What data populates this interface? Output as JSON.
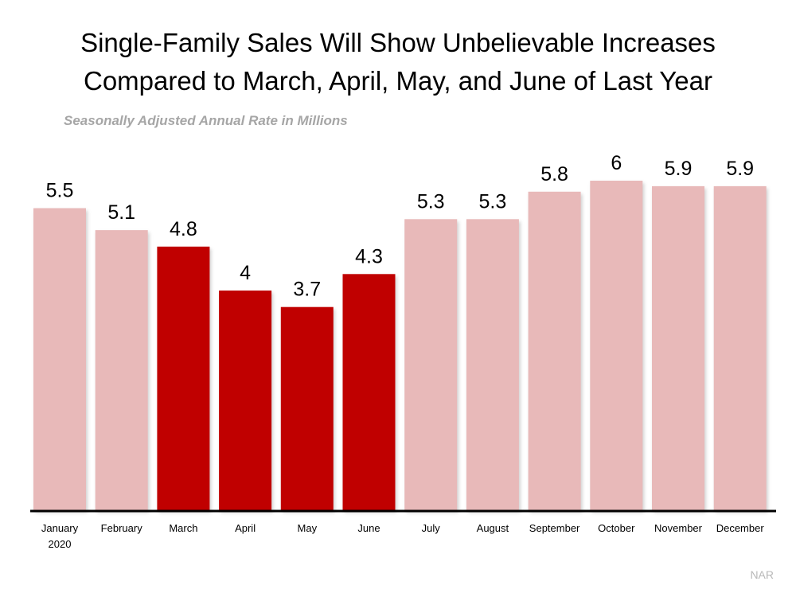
{
  "title_line1": "Single-Family Sales Will Show Unbelievable Increases",
  "title_line2": "Compared to March, April, May, and June of Last Year",
  "subtitle": "Seasonally Adjusted Annual Rate in Millions",
  "source": "NAR",
  "colors": {
    "highlight": "#c00000",
    "normal": "#e8b9b9",
    "axis": "#000000"
  },
  "chart_data": {
    "type": "bar",
    "categories": [
      "January 2020",
      "February",
      "March",
      "April",
      "May",
      "June",
      "July",
      "August",
      "September",
      "October",
      "November",
      "December"
    ],
    "category_lines": [
      [
        "January",
        "2020"
      ],
      [
        "February"
      ],
      [
        "March"
      ],
      [
        "April"
      ],
      [
        "May"
      ],
      [
        "June"
      ],
      [
        "July"
      ],
      [
        "August"
      ],
      [
        "September"
      ],
      [
        "October"
      ],
      [
        "November"
      ],
      [
        "December"
      ]
    ],
    "values": [
      5.5,
      5.1,
      4.8,
      4,
      3.7,
      4.3,
      5.3,
      5.3,
      5.8,
      6,
      5.9,
      5.9
    ],
    "value_labels": [
      "5.5",
      "5.1",
      "4.8",
      "4",
      "3.7",
      "4.3",
      "5.3",
      "5.3",
      "5.8",
      "6",
      "5.9",
      "5.9"
    ],
    "highlighted": [
      "March",
      "April",
      "May",
      "June"
    ],
    "title": "Single-Family Sales Will Show Unbelievable Increases Compared to March, April, May, and June of Last Year",
    "xlabel": "",
    "ylabel": "",
    "ylim": [
      0,
      6
    ],
    "grid": false,
    "legend": "none"
  }
}
